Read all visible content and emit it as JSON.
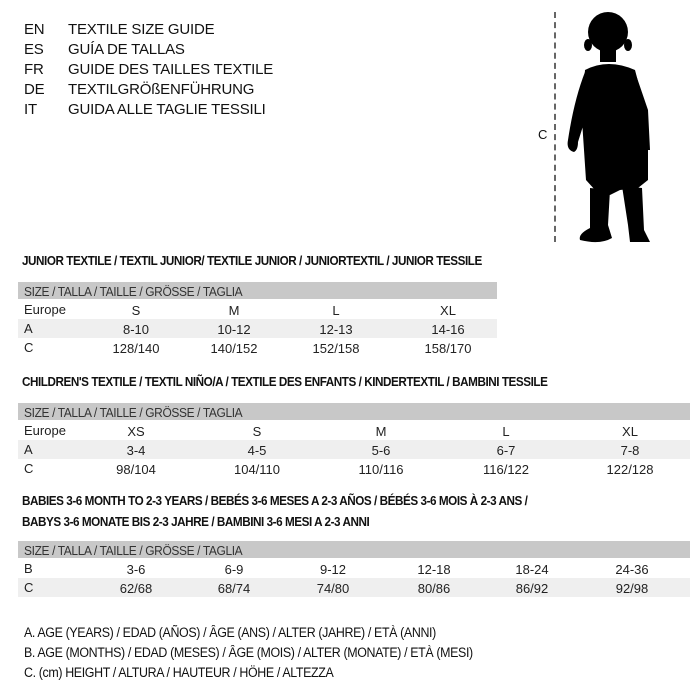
{
  "languages": [
    {
      "code": "EN",
      "title": "TEXTILE SIZE GUIDE"
    },
    {
      "code": "ES",
      "title": "GUÍA DE TALLAS"
    },
    {
      "code": "FR",
      "title": "GUIDE DES TAILLES TEXTILE"
    },
    {
      "code": "DE",
      "title": "TEXTILGRÖßENFÜHRUNG"
    },
    {
      "code": "IT",
      "title": "GUIDA ALLE TAGLIE TESSILI"
    }
  ],
  "figure": {
    "label": "C",
    "icon": "child-silhouette"
  },
  "junior": {
    "heading": "JUNIOR TEXTILE / TEXTIL JUNIOR/ TEXTILE JUNIOR / JUNIORTEXTIL / JUNIOR TESSILE",
    "size_header": "SIZE / TALLA / TAILLE / GRÖSSE / TAGLIA",
    "rows": [
      {
        "label": "Europe",
        "cells": [
          "S",
          "M",
          "L",
          "XL"
        ]
      },
      {
        "label": "A",
        "cells": [
          "8-10",
          "10-12",
          "12-13",
          "14-16"
        ]
      },
      {
        "label": "C",
        "cells": [
          "128/140",
          "140/152",
          "152/158",
          "158/170"
        ]
      }
    ]
  },
  "children": {
    "heading": "CHILDREN'S TEXTILE / TEXTIL NIÑO/A / TEXTILE DES ENFANTS / KINDERTEXTIL / BAMBINI TESSILE",
    "size_header": "SIZE / TALLA / TAILLE / GRÖSSE / TAGLIA",
    "rows": [
      {
        "label": "Europe",
        "cells": [
          "XS",
          "S",
          "M",
          "L",
          "XL"
        ]
      },
      {
        "label": "A",
        "cells": [
          "3-4",
          "4-5",
          "5-6",
          "6-7",
          "7-8"
        ]
      },
      {
        "label": "C",
        "cells": [
          "98/104",
          "104/110",
          "110/116",
          "116/122",
          "122/128"
        ]
      }
    ]
  },
  "babies": {
    "heading_1": "BABIES 3-6 MONTH TO 2-3 YEARS / BEBÉS 3-6 MESES A 2-3 AÑOS / BÉBÉS 3-6 MOIS À 2-3 ANS /",
    "heading_2": "BABYS 3-6 MONATE BIS 2-3 JAHRE / BAMBINI 3-6 MESI A 2-3 ANNI",
    "size_header": "SIZE / TALLA / TAILLE / GRÖSSE / TAGLIA",
    "rows": [
      {
        "label": "B",
        "cells": [
          "3-6",
          "6-9",
          "9-12",
          "12-18",
          "18-24",
          "24-36"
        ]
      },
      {
        "label": "C",
        "cells": [
          "62/68",
          "68/74",
          "74/80",
          "80/86",
          "86/92",
          "92/98"
        ]
      }
    ]
  },
  "legend": [
    "A. AGE (YEARS) / EDAD (AÑOS) / ÂGE (ANS) / ALTER (JAHRE) / ETÀ (ANNI)",
    "B. AGE (MONTHS) / EDAD (MESES) / ÂGE (MOIS) / ALTER (MONATE) / ETÀ (MESI)",
    "C. (cm) HEIGHT / ALTURA / HAUTEUR / HÖHE / ALTEZZA"
  ]
}
